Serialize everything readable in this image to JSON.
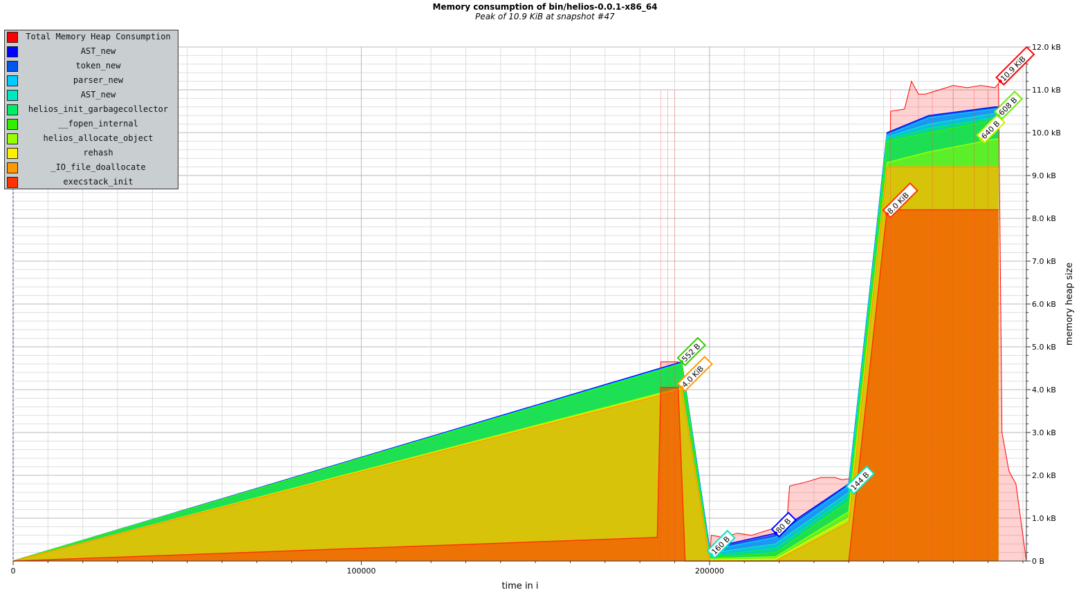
{
  "chart_data": {
    "type": "area",
    "title": "Memory consumption of bin/helios-0.0.1-x86_64",
    "subtitle": "Peak of 10.9 KiB at snapshot #47",
    "xlabel": "time in i",
    "ylabel": "memory heap size",
    "xlim": [
      0,
      291000
    ],
    "ylim": [
      0,
      12
    ],
    "x_ticks": [
      {
        "value": 0,
        "label": "0"
      },
      {
        "value": 100000,
        "label": "100000"
      },
      {
        "value": 200000,
        "label": "200000"
      }
    ],
    "y_ticks": [
      {
        "value": 0,
        "label": "0 B"
      },
      {
        "value": 1,
        "label": "1.0 kB"
      },
      {
        "value": 2,
        "label": "2.0 kB"
      },
      {
        "value": 3,
        "label": "3.0 kB"
      },
      {
        "value": 4,
        "label": "4.0 kB"
      },
      {
        "value": 5,
        "label": "5.0 kB"
      },
      {
        "value": 6,
        "label": "6.0 kB"
      },
      {
        "value": 7,
        "label": "7.0 kB"
      },
      {
        "value": 8,
        "label": "8.0 kB"
      },
      {
        "value": 9,
        "label": "9.0 kB"
      },
      {
        "value": 10,
        "label": "10.0 kB"
      },
      {
        "value": 11,
        "label": "11.0 kB"
      },
      {
        "value": 12,
        "label": "12.0 kB"
      }
    ],
    "y_axis_side": "right",
    "grid": true,
    "legend_position": "top-left",
    "series": [
      {
        "name": "Total Memory Heap Consumption",
        "color": "#ff0000",
        "points": [
          [
            0,
            0
          ],
          [
            185000,
            0.55
          ],
          [
            186000,
            4.65
          ],
          [
            191000,
            4.65
          ],
          [
            193000,
            0
          ],
          [
            195000,
            0.6
          ],
          [
            197000,
            0.5
          ],
          [
            200000,
            0
          ],
          [
            200500,
            0.6
          ],
          [
            204000,
            0.55
          ],
          [
            208000,
            0.65
          ],
          [
            212000,
            0.6
          ],
          [
            216000,
            0.7
          ],
          [
            220000,
            0.8
          ],
          [
            222000,
            0.7
          ],
          [
            223000,
            1.75
          ],
          [
            228000,
            1.85
          ],
          [
            232000,
            1.95
          ],
          [
            236000,
            1.95
          ],
          [
            238000,
            1.9
          ],
          [
            240000,
            1.92
          ],
          [
            243000,
            2.3
          ],
          [
            246000,
            2.8
          ],
          [
            251000,
            4.0
          ],
          [
            252000,
            10.5
          ],
          [
            256000,
            10.55
          ],
          [
            258000,
            11.2
          ],
          [
            260000,
            10.9
          ],
          [
            262000,
            10.9
          ],
          [
            266000,
            11.0
          ],
          [
            270000,
            11.1
          ],
          [
            274000,
            11.05
          ],
          [
            278000,
            11.1
          ],
          [
            282000,
            11.05
          ],
          [
            283000,
            11.15
          ],
          [
            284000,
            3.0
          ],
          [
            286000,
            2.1
          ],
          [
            288000,
            1.8
          ],
          [
            291000,
            0
          ]
        ]
      },
      {
        "name": "AST_new",
        "color": "#0000ff",
        "points": [
          [
            0,
            0
          ],
          [
            192000,
            4.65
          ],
          [
            200000,
            0.3
          ],
          [
            219000,
            0.65
          ],
          [
            240000,
            1.8
          ],
          [
            251000,
            10.0
          ],
          [
            263000,
            10.4
          ],
          [
            282000,
            10.6
          ],
          [
            283000,
            10.6
          ]
        ]
      },
      {
        "name": "token_new",
        "color": "#0055ee",
        "points": [
          [
            0,
            0
          ],
          [
            192000,
            4.63
          ],
          [
            200000,
            0.28
          ],
          [
            219000,
            0.6
          ],
          [
            240000,
            1.78
          ],
          [
            251000,
            9.98
          ],
          [
            263000,
            10.38
          ],
          [
            282000,
            10.58
          ],
          [
            283000,
            10.58
          ]
        ]
      },
      {
        "name": "parser_new",
        "color": "#00ccff",
        "points": [
          [
            0,
            0
          ],
          [
            192000,
            4.62
          ],
          [
            200000,
            0.25
          ],
          [
            219000,
            0.55
          ],
          [
            240000,
            1.75
          ],
          [
            251000,
            9.95
          ],
          [
            263000,
            10.35
          ],
          [
            282000,
            10.55
          ],
          [
            283000,
            10.55
          ]
        ]
      },
      {
        "name": "AST_new",
        "color": "#00e8c0",
        "points": [
          [
            0,
            0
          ],
          [
            192000,
            4.61
          ],
          [
            200000,
            0.18
          ],
          [
            219000,
            0.4
          ],
          [
            240000,
            1.6
          ],
          [
            251000,
            9.9
          ],
          [
            263000,
            10.2
          ],
          [
            282000,
            10.45
          ],
          [
            283000,
            10.45
          ]
        ]
      },
      {
        "name": "helios_init_garbagecollector",
        "color": "#00ee66",
        "points": [
          [
            0,
            0
          ],
          [
            192000,
            4.6
          ],
          [
            200000,
            0.12
          ],
          [
            219000,
            0.3
          ],
          [
            240000,
            1.5
          ],
          [
            251000,
            9.85
          ],
          [
            263000,
            10.1
          ],
          [
            282000,
            10.35
          ],
          [
            283000,
            10.35
          ]
        ]
      },
      {
        "name": "__fopen_internal",
        "color": "#33ee00",
        "points": [
          [
            0,
            0
          ],
          [
            192000,
            4.59
          ],
          [
            200000,
            0.08
          ],
          [
            219000,
            0.2
          ],
          [
            240000,
            1.4
          ],
          [
            251000,
            9.8
          ],
          [
            263000,
            10.0
          ],
          [
            282000,
            10.3
          ],
          [
            283000,
            10.3
          ]
        ]
      },
      {
        "name": "helios_allocate_object",
        "color": "#99ff00",
        "points": [
          [
            0,
            0
          ],
          [
            192000,
            4.05
          ],
          [
            200000,
            0.05
          ],
          [
            219000,
            0.1
          ],
          [
            240000,
            1.15
          ],
          [
            251000,
            9.3
          ],
          [
            263000,
            9.55
          ],
          [
            282000,
            9.85
          ],
          [
            283000,
            9.85
          ]
        ]
      },
      {
        "name": "rehash",
        "color": "#ffee00",
        "points": [
          [
            0,
            0
          ],
          [
            192000,
            4.02
          ],
          [
            200000,
            0.02
          ],
          [
            219000,
            0.05
          ],
          [
            240000,
            1.0
          ],
          [
            251000,
            9.2
          ],
          [
            282000,
            9.2
          ],
          [
            283000,
            9.2
          ]
        ]
      },
      {
        "name": "_IO_file_doallocate",
        "color": "#ff9900",
        "points": [
          [
            0,
            0
          ],
          [
            192000,
            4.0
          ],
          [
            200000,
            0
          ],
          [
            219000,
            0
          ],
          [
            240000,
            0.9
          ],
          [
            251000,
            9.2
          ],
          [
            282000,
            9.2
          ],
          [
            283000,
            9.2
          ]
        ]
      },
      {
        "name": "execstack_init",
        "color": "#ff3300",
        "points": [
          [
            0,
            0
          ],
          [
            185000,
            0.55
          ],
          [
            186000,
            4.05
          ],
          [
            191000,
            4.05
          ],
          [
            193000,
            0
          ],
          [
            239000,
            0
          ],
          [
            240000,
            0
          ],
          [
            251000,
            8.2
          ],
          [
            283000,
            8.2
          ]
        ]
      }
    ],
    "annotations": [
      {
        "text": "552 B",
        "x": 192000,
        "y": 4.65,
        "color": "#33cc00"
      },
      {
        "text": "4.0 KiB",
        "x": 192000,
        "y": 4.05,
        "color": "#ff9900"
      },
      {
        "text": "160 B",
        "x": 200500,
        "y": 0.15,
        "color": "#00e8c0"
      },
      {
        "text": "80 B",
        "x": 219000,
        "y": 0.65,
        "color": "#0000ff"
      },
      {
        "text": "144 B",
        "x": 240500,
        "y": 1.65,
        "color": "#00e8c0"
      },
      {
        "text": "8.0 KiB",
        "x": 251000,
        "y": 8.1,
        "color": "#ff3300"
      },
      {
        "text": "640 B",
        "x": 278000,
        "y": 9.85,
        "color": "#ccee00"
      },
      {
        "text": "608 B",
        "x": 283000,
        "y": 10.4,
        "color": "#66ee00"
      },
      {
        "text": "10.9 KiB",
        "x": 283500,
        "y": 11.2,
        "color": "#ff0000"
      }
    ]
  }
}
